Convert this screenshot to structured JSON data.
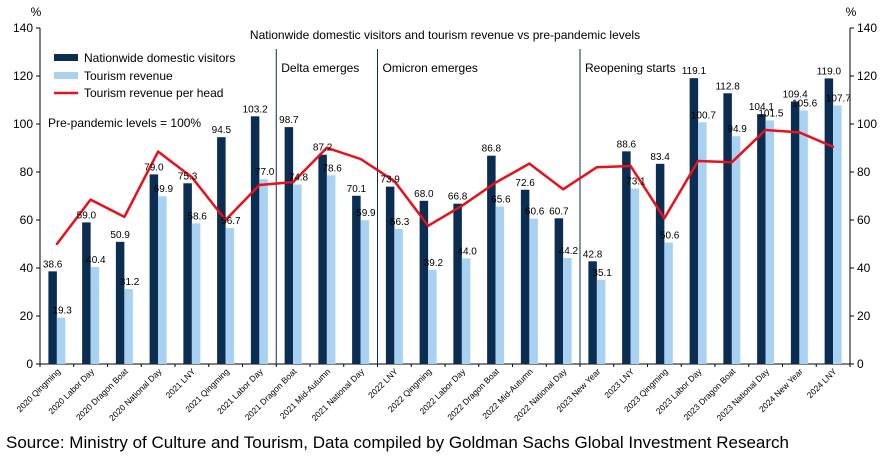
{
  "chart_data": {
    "type": "bar",
    "title": "Nationwide  domestic  visitors  and  tourism  revenue  vs  pre-pandemic  levels",
    "unit_left": "%",
    "unit_right": "%",
    "ylim": [
      0,
      140
    ],
    "yticks": [
      0,
      20,
      40,
      60,
      80,
      100,
      120,
      140
    ],
    "categories": [
      "2020 Qingming",
      "2020 Labor Day",
      "2020 Dragon Boat",
      "2020 National Day",
      "2021 LNY",
      "2021 Qingming",
      "2021 Labor Day",
      "2021 Dragon Boat",
      "2021 Mid-Autumn",
      "2021 National Day",
      "2022 LNY",
      "2022 Qingming",
      "2022 Labor Day",
      "2022 Dragon Boat",
      "2022 Mid-Autumn",
      "2022 National Day",
      "2023 New Year",
      "2023 LNY",
      "2023 Qingming",
      "2023 Labor Day",
      "2023 Dragon Boat",
      "2023 National Day",
      "2024 New Year",
      "2024 LNY"
    ],
    "series": [
      {
        "name": "Nationwide domestic visitors",
        "kind": "bar",
        "color": "#0b2d52",
        "values": [
          38.6,
          59.0,
          50.9,
          79.0,
          75.3,
          94.5,
          103.2,
          98.7,
          87.2,
          70.1,
          73.9,
          68.0,
          66.8,
          86.8,
          72.6,
          60.7,
          42.8,
          88.6,
          83.4,
          119.1,
          112.8,
          104.1,
          109.4,
          119.0
        ],
        "labels": [
          "38.6",
          "59.0",
          "50.9",
          "79.0",
          "75.3",
          "94.5",
          "103.2",
          "98.7",
          "87.2",
          "70.1",
          "73.9",
          "68.0",
          "66.8",
          "86.8",
          "72.6",
          "60.7",
          "42.8",
          "88.6",
          "83.4",
          "119.1",
          "112.8",
          "104.1",
          "109.4",
          "119.0"
        ]
      },
      {
        "name": "Tourism revenue",
        "kind": "bar",
        "color": "#a9d2f2",
        "values": [
          19.3,
          40.4,
          31.2,
          69.9,
          58.6,
          56.7,
          77.0,
          74.8,
          78.6,
          59.9,
          56.3,
          39.2,
          44.0,
          65.6,
          60.6,
          44.2,
          35.1,
          73.1,
          50.6,
          100.7,
          94.9,
          101.5,
          105.6,
          107.7
        ],
        "labels": [
          "19.3",
          "40.4",
          "31.2",
          "69.9",
          "58.6",
          "56.7",
          "77.0",
          "74.8",
          "78.6",
          "59.9",
          "56.3",
          "39.2",
          "44.0",
          "65.6",
          "60.6",
          "44.2",
          "35.1",
          "73.1",
          "50.6",
          "100.7",
          "94.9",
          "101.5",
          "105.6",
          "107.7"
        ]
      },
      {
        "name": "Tourism revenue per head",
        "kind": "line",
        "color": "#e8101b",
        "values": [
          50,
          68.5,
          61.3,
          88.5,
          77.8,
          60.0,
          74.6,
          75.8,
          90.1,
          85.4,
          76.2,
          57.6,
          65.9,
          75.6,
          83.5,
          72.8,
          82.0,
          82.5,
          60.7,
          84.6,
          84.1,
          97.5,
          96.5,
          90.5
        ]
      }
    ],
    "annotations": [
      {
        "text": "Delta emerges",
        "after_index": 6
      },
      {
        "text": "Omicron emerges",
        "after_index": 9
      },
      {
        "text": "Reopening starts",
        "after_index": 15
      }
    ],
    "note": "Pre-pandemic levels = 100%"
  },
  "source": "Source: Ministry of Culture and Tourism, Data compiled by Goldman Sachs Global Investment Research"
}
